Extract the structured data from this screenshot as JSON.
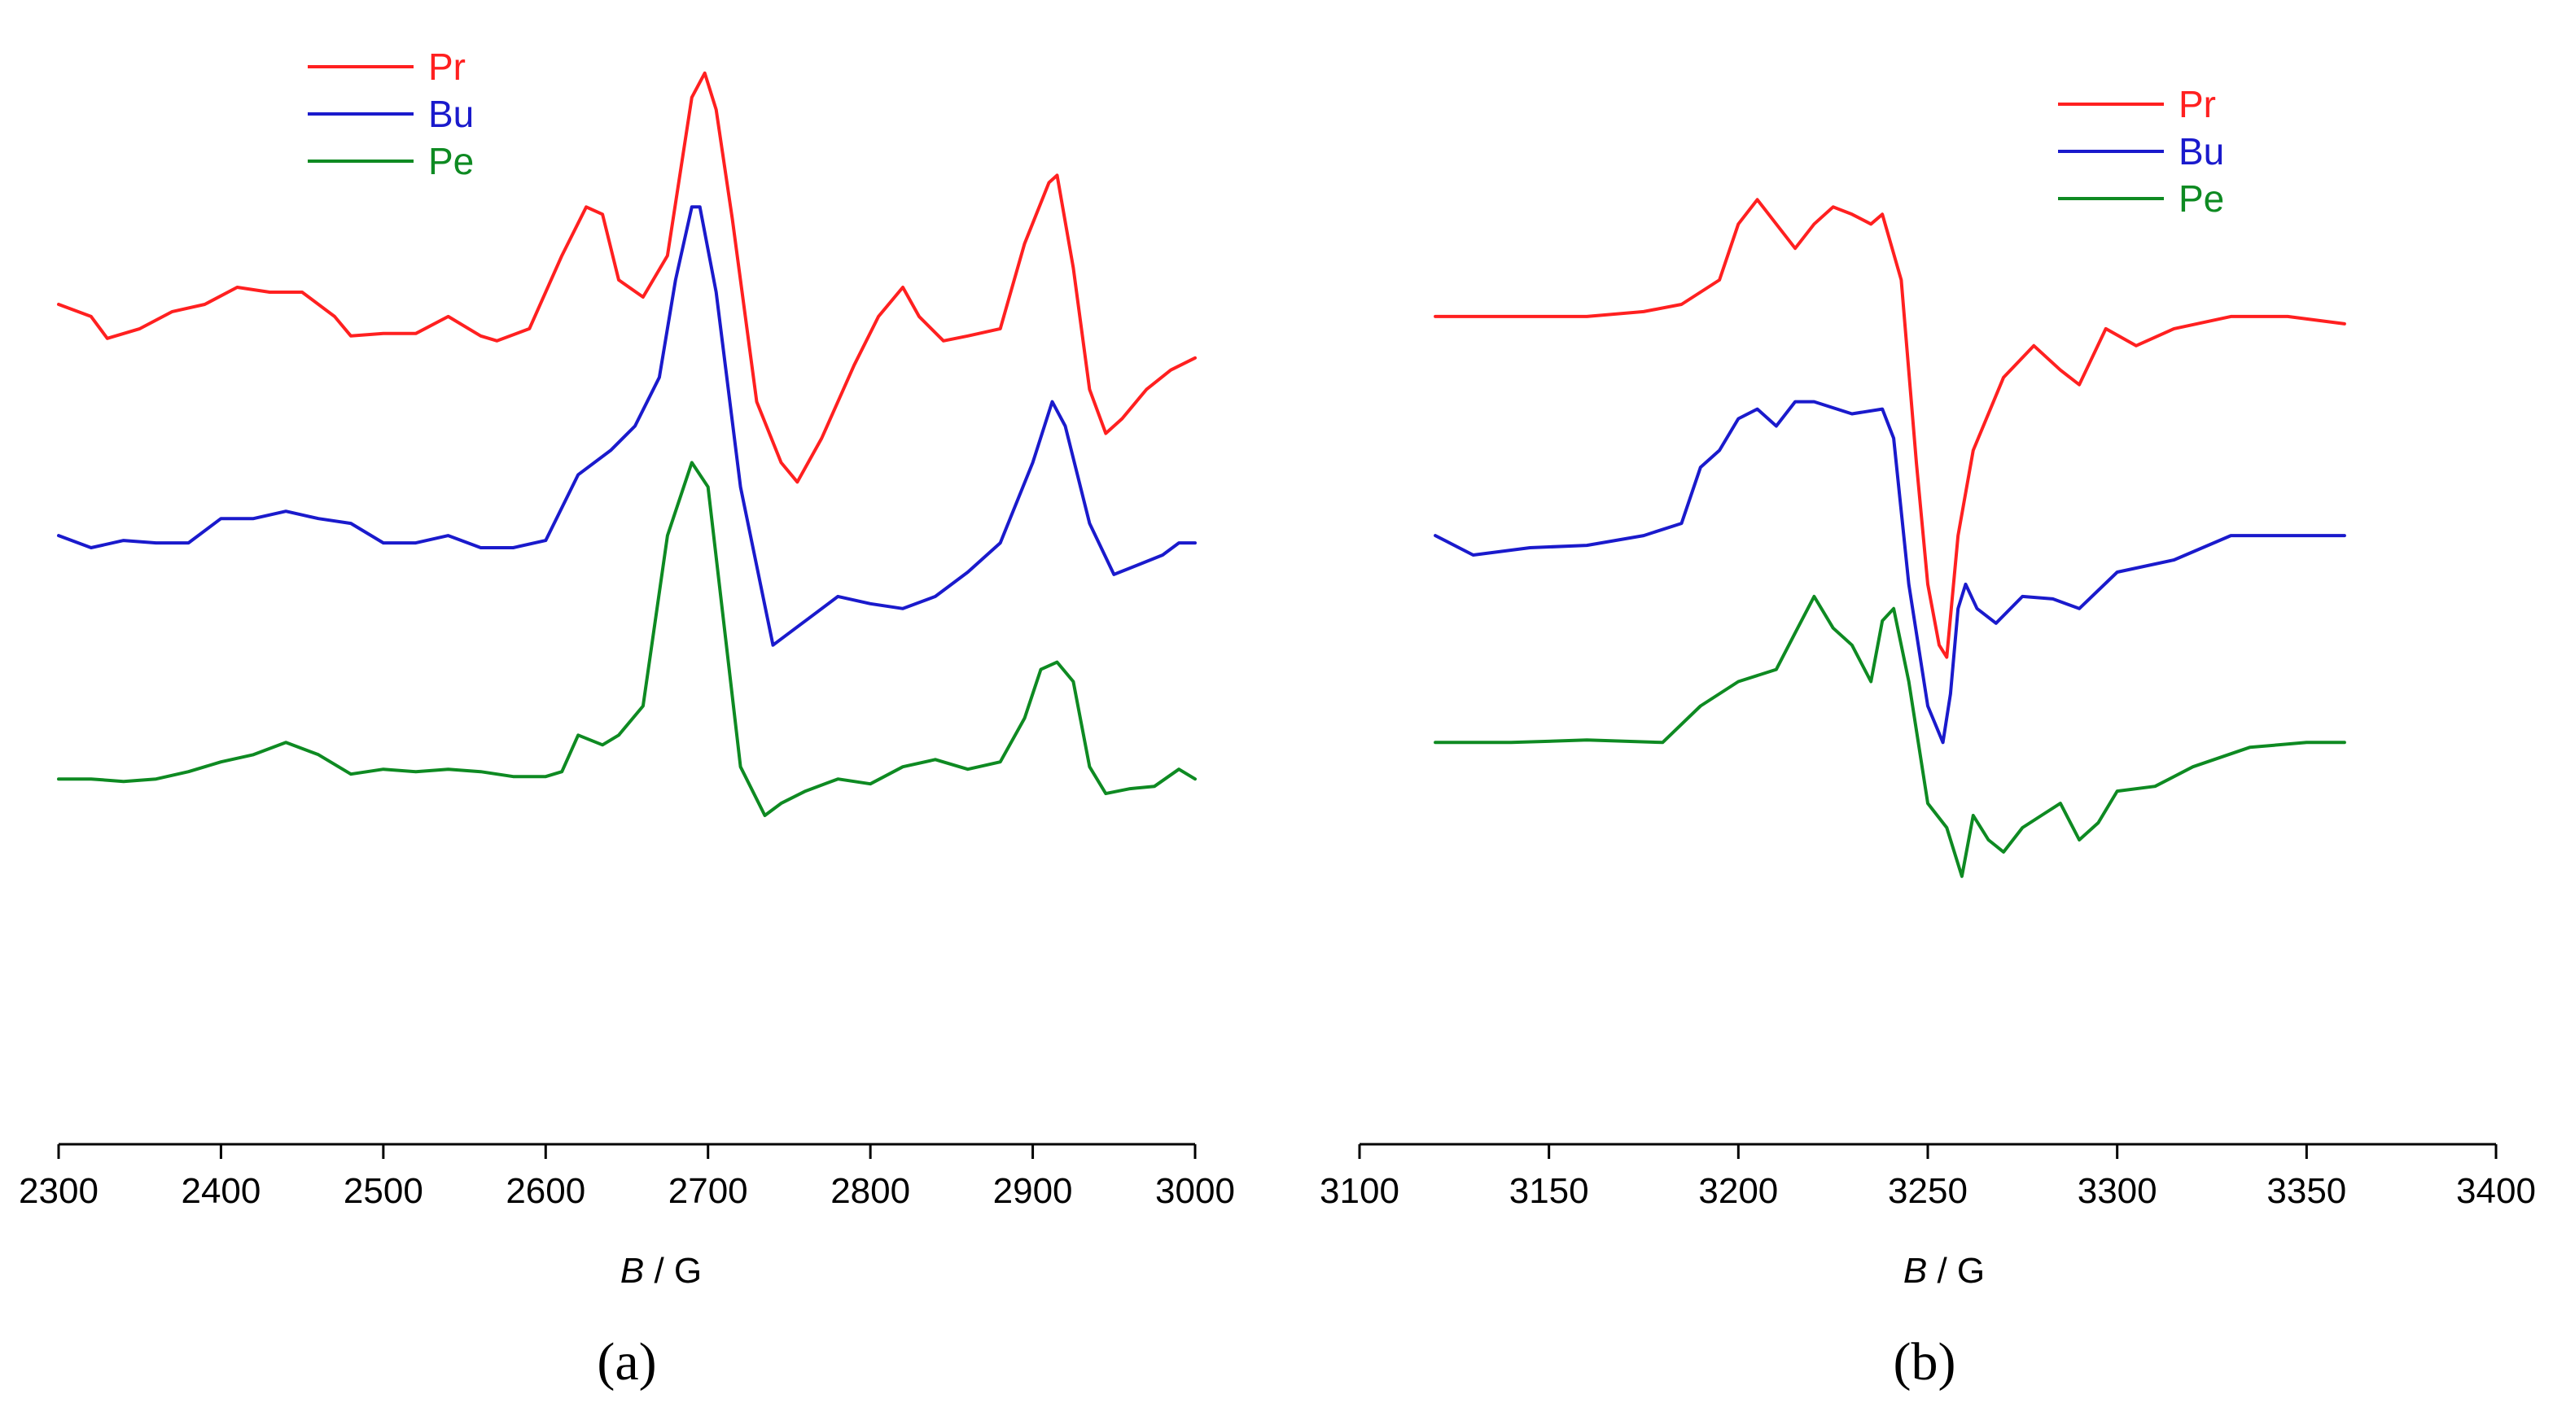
{
  "colors": {
    "Pr": "#ff2020",
    "Bu": "#1a1acc",
    "Pe": "#0e8a22",
    "axis": "#000000"
  },
  "chart_data": [
    {
      "type": "line",
      "panel_label": "(a)",
      "xlabel_italic": "B",
      "xlabel_unit": " / G",
      "xlim": [
        2300,
        3000
      ],
      "x_ticks": [
        2300,
        2400,
        2500,
        2600,
        2700,
        2800,
        2900,
        3000
      ],
      "x_tick_labels": [
        "2300",
        "2400",
        "2500",
        "2600",
        "2700",
        "2800",
        "2900",
        "3000"
      ],
      "y_axis_shown": false,
      "ylim": [
        -3.2,
        1.2
      ],
      "legend": {
        "position": "top-left",
        "entries": [
          "Pr",
          "Bu",
          "Pe"
        ]
      },
      "series": [
        {
          "name": "Pr",
          "x": [
            2300,
            2320,
            2330,
            2350,
            2370,
            2390,
            2410,
            2430,
            2450,
            2470,
            2480,
            2500,
            2520,
            2540,
            2560,
            2570,
            2590,
            2610,
            2625,
            2635,
            2645,
            2660,
            2675,
            2690,
            2698,
            2705,
            2715,
            2730,
            2745,
            2755,
            2770,
            2790,
            2805,
            2820,
            2830,
            2845,
            2860,
            2880,
            2895,
            2910,
            2915,
            2925,
            2935,
            2945,
            2955,
            2970,
            2985,
            3000
          ],
          "y": [
            0.05,
            0.0,
            -0.09,
            -0.05,
            0.02,
            0.05,
            0.12,
            0.1,
            0.1,
            0.0,
            -0.08,
            -0.07,
            -0.07,
            0.0,
            -0.08,
            -0.1,
            -0.05,
            0.25,
            0.45,
            0.42,
            0.15,
            0.08,
            0.25,
            0.9,
            1.0,
            0.85,
            0.4,
            -0.35,
            -0.6,
            -0.68,
            -0.5,
            -0.2,
            0.0,
            0.12,
            0.0,
            -0.1,
            -0.08,
            -0.05,
            0.3,
            0.55,
            0.58,
            0.2,
            -0.3,
            -0.48,
            -0.42,
            -0.3,
            -0.22,
            -0.17
          ]
        },
        {
          "name": "Bu",
          "x": [
            2300,
            2320,
            2340,
            2360,
            2380,
            2400,
            2420,
            2440,
            2460,
            2480,
            2500,
            2520,
            2540,
            2560,
            2580,
            2600,
            2620,
            2640,
            2655,
            2670,
            2680,
            2690,
            2695,
            2705,
            2720,
            2740,
            2760,
            2780,
            2800,
            2820,
            2840,
            2860,
            2880,
            2900,
            2912,
            2920,
            2935,
            2950,
            2965,
            2980,
            2990,
            3000
          ],
          "y": [
            -0.9,
            -0.95,
            -0.92,
            -0.93,
            -0.93,
            -0.83,
            -0.83,
            -0.8,
            -0.83,
            -0.85,
            -0.93,
            -0.93,
            -0.9,
            -0.95,
            -0.95,
            -0.92,
            -0.65,
            -0.55,
            -0.45,
            -0.25,
            0.15,
            0.45,
            0.45,
            0.1,
            -0.7,
            -1.35,
            -1.25,
            -1.15,
            -1.18,
            -1.2,
            -1.15,
            -1.05,
            -0.93,
            -0.6,
            -0.35,
            -0.45,
            -0.85,
            -1.06,
            -1.02,
            -0.98,
            -0.93,
            -0.93
          ]
        },
        {
          "name": "Pe",
          "x": [
            2300,
            2320,
            2340,
            2360,
            2380,
            2400,
            2420,
            2440,
            2460,
            2480,
            2500,
            2520,
            2540,
            2560,
            2580,
            2600,
            2610,
            2620,
            2635,
            2645,
            2660,
            2675,
            2690,
            2700,
            2720,
            2735,
            2745,
            2760,
            2780,
            2800,
            2820,
            2840,
            2860,
            2880,
            2895,
            2905,
            2915,
            2925,
            2935,
            2945,
            2960,
            2975,
            2990,
            3000
          ],
          "y": [
            -1.9,
            -1.9,
            -1.91,
            -1.9,
            -1.87,
            -1.83,
            -1.8,
            -1.75,
            -1.8,
            -1.88,
            -1.86,
            -1.87,
            -1.86,
            -1.87,
            -1.89,
            -1.89,
            -1.87,
            -1.72,
            -1.76,
            -1.72,
            -1.6,
            -0.9,
            -0.6,
            -0.7,
            -1.85,
            -2.05,
            -2.0,
            -1.95,
            -1.9,
            -1.92,
            -1.85,
            -1.82,
            -1.86,
            -1.83,
            -1.65,
            -1.45,
            -1.42,
            -1.5,
            -1.85,
            -1.96,
            -1.94,
            -1.93,
            -1.86,
            -1.9
          ]
        }
      ]
    },
    {
      "type": "line",
      "panel_label": "(b)",
      "xlabel_italic": "B",
      "xlabel_unit": " / G",
      "xlim": [
        3100,
        3400
      ],
      "x_ticks": [
        3100,
        3150,
        3200,
        3250,
        3300,
        3350,
        3400
      ],
      "x_tick_labels": [
        "3100",
        "3150",
        "3200",
        "3250",
        "3300",
        "3350",
        "3400"
      ],
      "y_axis_shown": false,
      "ylim": [
        -3.2,
        1.2
      ],
      "legend": {
        "position": "top-right",
        "entries": [
          "Pr",
          "Bu",
          "Pe"
        ]
      },
      "series": [
        {
          "name": "Pr",
          "x": [
            3120,
            3140,
            3160,
            3175,
            3185,
            3195,
            3200,
            3205,
            3210,
            3215,
            3220,
            3225,
            3230,
            3235,
            3238,
            3243,
            3247,
            3250,
            3253,
            3255,
            3258,
            3262,
            3270,
            3278,
            3285,
            3290,
            3297,
            3305,
            3315,
            3330,
            3345,
            3360
          ],
          "y": [
            0.0,
            0.0,
            0.0,
            0.02,
            0.05,
            0.15,
            0.38,
            0.48,
            0.38,
            0.28,
            0.38,
            0.45,
            0.42,
            0.38,
            0.42,
            0.15,
            -0.6,
            -1.1,
            -1.35,
            -1.4,
            -0.9,
            -0.55,
            -0.25,
            -0.12,
            -0.22,
            -0.28,
            -0.05,
            -0.12,
            -0.05,
            0.0,
            0.0,
            -0.03
          ]
        },
        {
          "name": "Bu",
          "x": [
            3120,
            3130,
            3145,
            3160,
            3175,
            3185,
            3190,
            3195,
            3200,
            3205,
            3210,
            3215,
            3220,
            3230,
            3238,
            3241,
            3245,
            3250,
            3254,
            3256,
            3258,
            3260,
            3263,
            3268,
            3275,
            3283,
            3290,
            3300,
            3315,
            3330,
            3345,
            3360
          ],
          "y": [
            -0.9,
            -0.98,
            -0.95,
            -0.94,
            -0.9,
            -0.85,
            -0.62,
            -0.55,
            -0.42,
            -0.38,
            -0.45,
            -0.35,
            -0.35,
            -0.4,
            -0.38,
            -0.5,
            -1.1,
            -1.6,
            -1.75,
            -1.55,
            -1.2,
            -1.1,
            -1.2,
            -1.26,
            -1.15,
            -1.16,
            -1.2,
            -1.05,
            -1.0,
            -0.9,
            -0.9,
            -0.9
          ]
        },
        {
          "name": "Pe",
          "x": [
            3120,
            3140,
            3160,
            3180,
            3190,
            3200,
            3210,
            3215,
            3220,
            3225,
            3230,
            3235,
            3238,
            3241,
            3245,
            3250,
            3255,
            3259,
            3262,
            3266,
            3270,
            3275,
            3280,
            3285,
            3290,
            3295,
            3300,
            3310,
            3320,
            3335,
            3350,
            3360
          ],
          "y": [
            -1.75,
            -1.75,
            -1.74,
            -1.75,
            -1.6,
            -1.5,
            -1.45,
            -1.3,
            -1.15,
            -1.28,
            -1.35,
            -1.5,
            -1.25,
            -1.2,
            -1.5,
            -2.0,
            -2.1,
            -2.3,
            -2.05,
            -2.15,
            -2.2,
            -2.1,
            -2.05,
            -2.0,
            -2.15,
            -2.08,
            -1.95,
            -1.93,
            -1.85,
            -1.77,
            -1.75,
            -1.75
          ]
        }
      ]
    }
  ]
}
